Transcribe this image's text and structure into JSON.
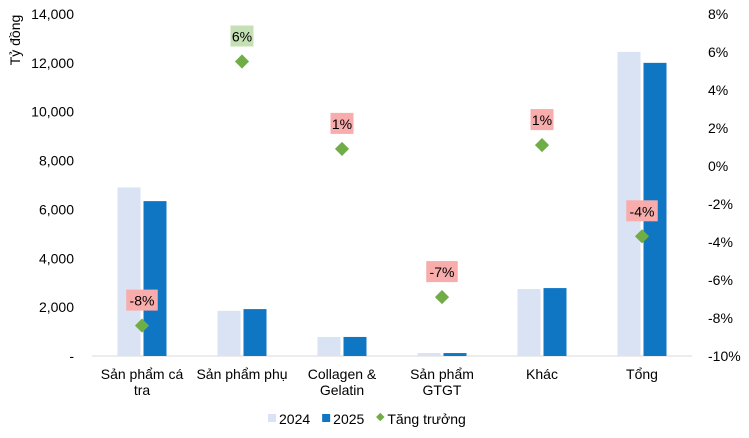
{
  "chart_data": {
    "type": "bar",
    "ylabel": "Tỷ đồng",
    "ylim": [
      0,
      14000
    ],
    "y2lim": [
      -10,
      8
    ],
    "yticks": [
      "-",
      "2,000",
      "4,000",
      "6,000",
      "8,000",
      "10,000",
      "12,000",
      "14,000"
    ],
    "y2ticks": [
      "-10%",
      "-8%",
      "-6%",
      "-4%",
      "-2%",
      "0%",
      "2%",
      "4%",
      "6%",
      "8%"
    ],
    "categories": [
      [
        "Sản phẩm cá",
        "tra"
      ],
      [
        "Sản phẩm phụ"
      ],
      [
        "Collagen &",
        "Gelatin"
      ],
      [
        "Sản phẩm",
        "GTGT"
      ],
      [
        "Khác"
      ],
      [
        "Tổng"
      ]
    ],
    "series": [
      {
        "name": "2024",
        "type": "bar",
        "color": "#dae3f3",
        "values": [
          6900,
          1850,
          780,
          120,
          2740,
          12450
        ]
      },
      {
        "name": "2025",
        "type": "bar",
        "color": "#0e76c2",
        "values": [
          6340,
          1920,
          780,
          120,
          2780,
          12000
        ]
      },
      {
        "name": "Tăng trưởng",
        "type": "scatter",
        "axis": "right",
        "color": "#70ad47",
        "values": [
          -8.4,
          5.5,
          0.9,
          -6.9,
          1.1,
          -3.7
        ],
        "labels": [
          "-8%",
          "6%",
          "1%",
          "-7%",
          "1%",
          "-4%"
        ],
        "label_colors": [
          "#f8acac",
          "#c5e0b4",
          "#f8acac",
          "#f8acac",
          "#f8acac",
          "#f8acac"
        ]
      }
    ],
    "grid": false,
    "legend": "bottom"
  }
}
